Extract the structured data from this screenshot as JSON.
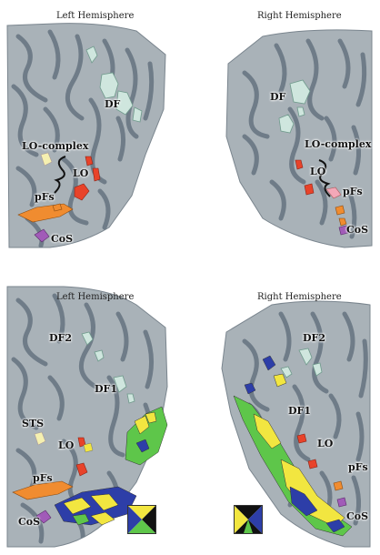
{
  "panels": {
    "top_left": {
      "title": "Left Hemisphere",
      "labels": {
        "df": "DF",
        "lo_complex": "LO-complex",
        "lo": "LO",
        "pfs": "pFs",
        "cos": "CoS"
      }
    },
    "top_right": {
      "title": "Right Hemisphere",
      "labels": {
        "df": "DF",
        "lo_complex": "LO-complex",
        "lo": "LO",
        "pfs": "pFs",
        "cos": "CoS"
      }
    },
    "bottom_left": {
      "title": "Left Hemisphere",
      "labels": {
        "df2": "DF2",
        "df1": "DF1",
        "sts": "STS",
        "lo": "LO",
        "pfs": "pFs",
        "cos": "CoS"
      }
    },
    "bottom_right": {
      "title": "Right Hemisphere",
      "labels": {
        "df2": "DF2",
        "df1": "DF1",
        "lo": "LO",
        "pfs": "pFs",
        "cos": "CoS"
      }
    }
  },
  "colors": {
    "cortex_light": "#a9b2b8",
    "cortex_dark": "#6f7c88",
    "df_region": "#cfe6de",
    "lo_region": "#e8432a",
    "pfs_region": "#f08c30",
    "cos_region": "#a15bb8",
    "sts_region": "#f5f0b0",
    "wedge_yellow": "#f2e640",
    "wedge_blue": "#2d3ea8",
    "wedge_green": "#5ec64a"
  },
  "legend": {
    "wheel_left": "polar-angle-wheel",
    "wheel_right": "polar-angle-wheel"
  }
}
